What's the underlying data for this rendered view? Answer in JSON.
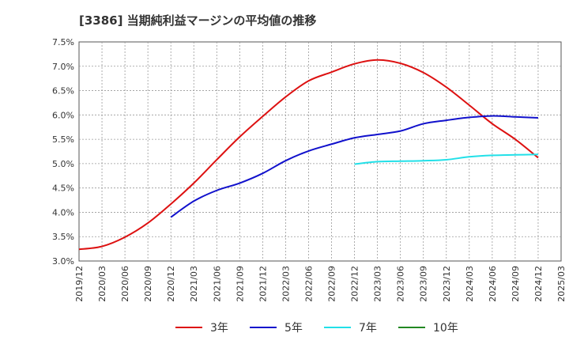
{
  "chart_data": {
    "type": "line",
    "title": "[3386]  当期純利益マージンの平均値の推移",
    "xlabel": "",
    "ylabel": "",
    "ylim": [
      3.0,
      7.5
    ],
    "y_ticks": [
      "3.0%",
      "3.5%",
      "4.0%",
      "4.5%",
      "5.0%",
      "5.5%",
      "6.0%",
      "6.5%",
      "7.0%",
      "7.5%"
    ],
    "x_ticks": [
      "2019/12",
      "2020/03",
      "2020/06",
      "2020/09",
      "2020/12",
      "2021/03",
      "2021/06",
      "2021/09",
      "2021/12",
      "2022/03",
      "2022/06",
      "2022/09",
      "2022/12",
      "2023/03",
      "2023/06",
      "2023/09",
      "2023/12",
      "2024/03",
      "2024/06",
      "2024/09",
      "2024/12",
      "2025/03"
    ],
    "grid": true,
    "legend_position": "bottom",
    "series": [
      {
        "name": "3年",
        "color": "#dd1111",
        "x": [
          "2019/12",
          "2020/03",
          "2020/06",
          "2020/09",
          "2020/12",
          "2021/03",
          "2021/06",
          "2021/09",
          "2021/12",
          "2022/03",
          "2022/06",
          "2022/09",
          "2022/12",
          "2023/03",
          "2023/06",
          "2023/09",
          "2023/12",
          "2024/03",
          "2024/06",
          "2024/09",
          "2024/12"
        ],
        "values": [
          3.24,
          3.3,
          3.49,
          3.78,
          4.17,
          4.6,
          5.08,
          5.55,
          5.97,
          6.37,
          6.7,
          6.88,
          7.05,
          7.13,
          7.06,
          6.87,
          6.57,
          6.2,
          5.82,
          5.5,
          5.12
        ]
      },
      {
        "name": "5年",
        "color": "#1111cc",
        "x": [
          "2020/12",
          "2021/03",
          "2021/06",
          "2021/09",
          "2021/12",
          "2022/03",
          "2022/06",
          "2022/09",
          "2022/12",
          "2023/03",
          "2023/06",
          "2023/09",
          "2023/12",
          "2024/03",
          "2024/06",
          "2024/09",
          "2024/12"
        ],
        "values": [
          3.9,
          4.23,
          4.45,
          4.6,
          4.8,
          5.06,
          5.26,
          5.4,
          5.53,
          5.6,
          5.67,
          5.82,
          5.89,
          5.95,
          5.98,
          5.96,
          5.94
        ]
      },
      {
        "name": "7年",
        "color": "#22e0e8",
        "x": [
          "2022/12",
          "2023/03",
          "2023/06",
          "2023/09",
          "2023/12",
          "2024/03",
          "2024/06",
          "2024/09",
          "2024/12"
        ],
        "values": [
          4.99,
          5.04,
          5.05,
          5.06,
          5.08,
          5.14,
          5.17,
          5.18,
          5.19
        ]
      },
      {
        "name": "10年",
        "color": "#228822",
        "x": [],
        "values": []
      }
    ]
  }
}
